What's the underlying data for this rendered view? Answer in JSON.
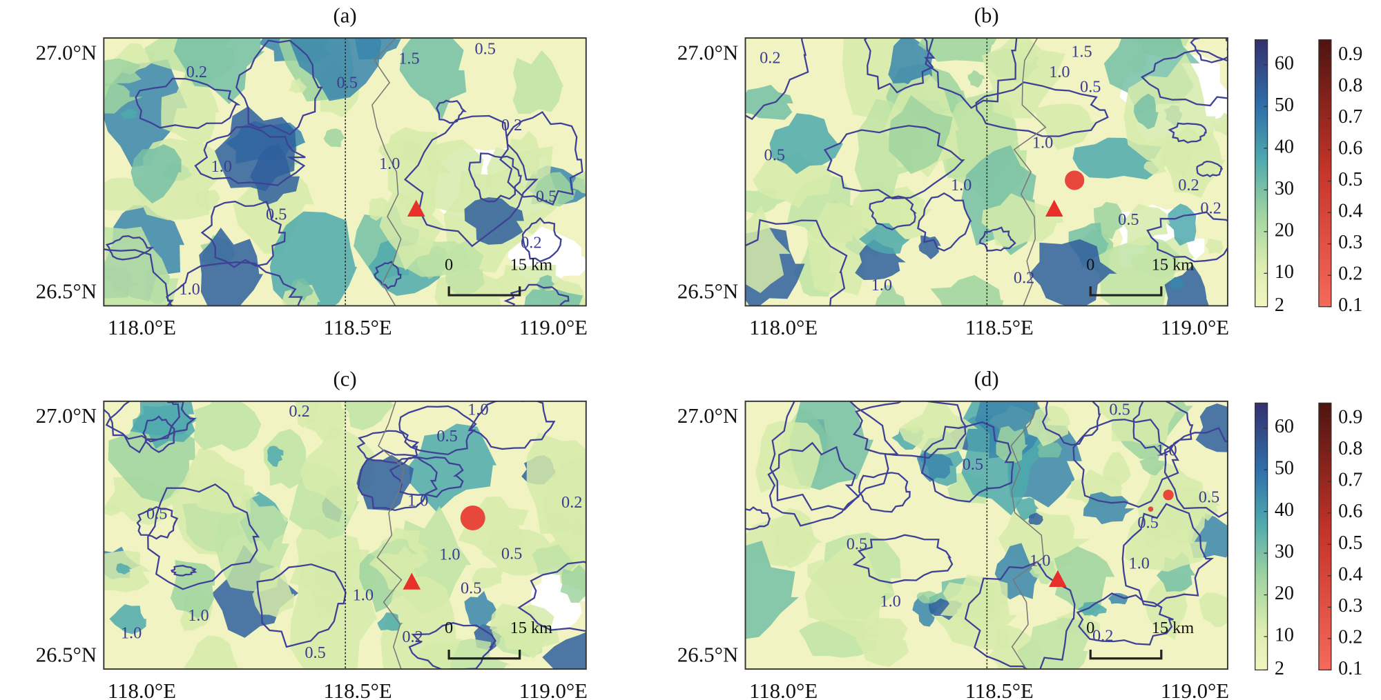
{
  "panels": [
    {
      "label": "(a)",
      "lat_labels": [
        "27.0°N",
        "26.5°N"
      ],
      "lon_labels": [
        "118.0°E",
        "118.5°E",
        "119.0°E"
      ],
      "contour_labels": [
        "1.5",
        "0.5",
        "0.2",
        "0.5",
        "0.2",
        "1.0",
        "1.0",
        "0.5",
        "0.5",
        "0.2",
        "1.0"
      ],
      "scale_bar": [
        "0",
        "15 km"
      ]
    },
    {
      "label": "(b)",
      "lat_labels": [
        "27.0°N",
        "26.5°N"
      ],
      "lon_labels": [
        "118.0°E",
        "118.5°E",
        "119.0°E"
      ],
      "contour_labels": [
        "0.2",
        "1.5",
        "1.0",
        "0.5",
        "0.5",
        "1.0",
        "1.0",
        "0.2",
        "0.2",
        "0.5",
        "1.0",
        "0.2"
      ],
      "scale_bar": [
        "0",
        "15 km"
      ],
      "colorbars": [
        {
          "ticks": [
            2,
            10,
            20,
            30,
            40,
            50,
            60
          ]
        },
        {
          "ticks": [
            0.1,
            0.2,
            0.3,
            0.4,
            0.5,
            0.6,
            0.7,
            0.8,
            0.9
          ]
        }
      ]
    },
    {
      "label": "(c)",
      "lat_labels": [
        "27.0°N",
        "26.5°N"
      ],
      "lon_labels": [
        "118.0°E",
        "118.5°E",
        "119.0°E"
      ],
      "contour_labels": [
        "0.2",
        "1.0",
        "0.5",
        "0.5",
        "1.0",
        "0.2",
        "1.0",
        "0.5",
        "0.5",
        "1.0",
        "1.0",
        "1.0",
        "0.2",
        "0.5"
      ],
      "scale_bar": [
        "0",
        "15 km"
      ]
    },
    {
      "label": "(d)",
      "lat_labels": [
        "27.0°N",
        "26.5°N"
      ],
      "lon_labels": [
        "118.0°E",
        "118.5°E",
        "119.0°E"
      ],
      "contour_labels": [
        "0.5",
        "0.5",
        "1.0",
        "0.5",
        "0.5",
        "0.5",
        "1.0",
        "1.0",
        "1.0",
        "0.2"
      ],
      "scale_bar": [
        "0",
        "15 km"
      ],
      "colorbars": [
        {
          "ticks": [
            2,
            10,
            20,
            30,
            40,
            50,
            60
          ]
        },
        {
          "ticks": [
            0.1,
            0.2,
            0.3,
            0.4,
            0.5,
            0.6,
            0.7,
            0.8,
            0.9
          ]
        }
      ]
    }
  ]
}
